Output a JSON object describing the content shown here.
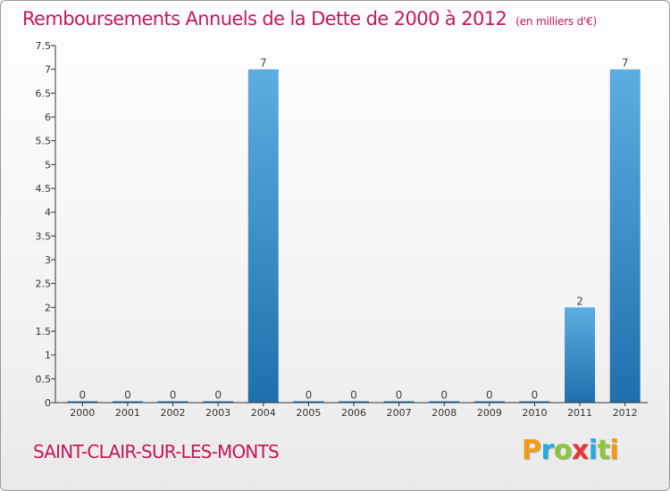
{
  "header": {
    "title": "Remboursements Annuels de la Dette de 2000 à 2012",
    "unit": "(en milliers d'€)"
  },
  "footer": {
    "commune": "SAINT-CLAIR-SUR-LES-MONTS",
    "logo_letters": [
      {
        "char": "P",
        "color": "#f39c12"
      },
      {
        "char": "r",
        "color": "#27a9e1"
      },
      {
        "char": "o",
        "color": "#8cc63f"
      },
      {
        "char": "x",
        "color": "#e53935"
      },
      {
        "char": "i",
        "color": "#27a9e1"
      },
      {
        "char": "t",
        "color": "#8cc63f"
      },
      {
        "char": "i",
        "color": "#f39c12"
      }
    ]
  },
  "colors": {
    "title": "#c2185b",
    "bar_top": "#5dade2",
    "bar_bottom": "#1f6fad",
    "axis": "#333333"
  },
  "chart_data": {
    "type": "bar",
    "categories": [
      "2000",
      "2001",
      "2002",
      "2003",
      "2004",
      "2005",
      "2006",
      "2007",
      "2008",
      "2009",
      "2010",
      "2011",
      "2012"
    ],
    "values": [
      0,
      0,
      0,
      0,
      7,
      0,
      0,
      0,
      0,
      0,
      0,
      2,
      7
    ],
    "data_labels": [
      "0",
      "0",
      "0",
      "0",
      "7",
      "0",
      "0",
      "0",
      "0",
      "0",
      "0",
      "2",
      "7"
    ],
    "ylim": [
      0,
      7.5
    ],
    "yticks": [
      {
        "value": 0,
        "label": "0"
      },
      {
        "value": 0.5,
        "label": "0.5"
      },
      {
        "value": 1,
        "label": "1"
      },
      {
        "value": 1.5,
        "label": "1.5"
      },
      {
        "value": 2,
        "label": "2"
      },
      {
        "value": 2.5,
        "label": "2.5"
      },
      {
        "value": 3,
        "label": "3"
      },
      {
        "value": 3.5,
        "label": "3.5"
      },
      {
        "value": 4,
        "label": "4"
      },
      {
        "value": 4.5,
        "label": "4.5"
      },
      {
        "value": 5,
        "label": "5"
      },
      {
        "value": 5.5,
        "label": "5.5"
      },
      {
        "value": 6,
        "label": "6"
      },
      {
        "value": 6.5,
        "label": "6.5"
      },
      {
        "value": 7,
        "label": "7"
      },
      {
        "value": 7.5,
        "label": "7.5"
      }
    ],
    "grid": false,
    "legend": "none"
  }
}
